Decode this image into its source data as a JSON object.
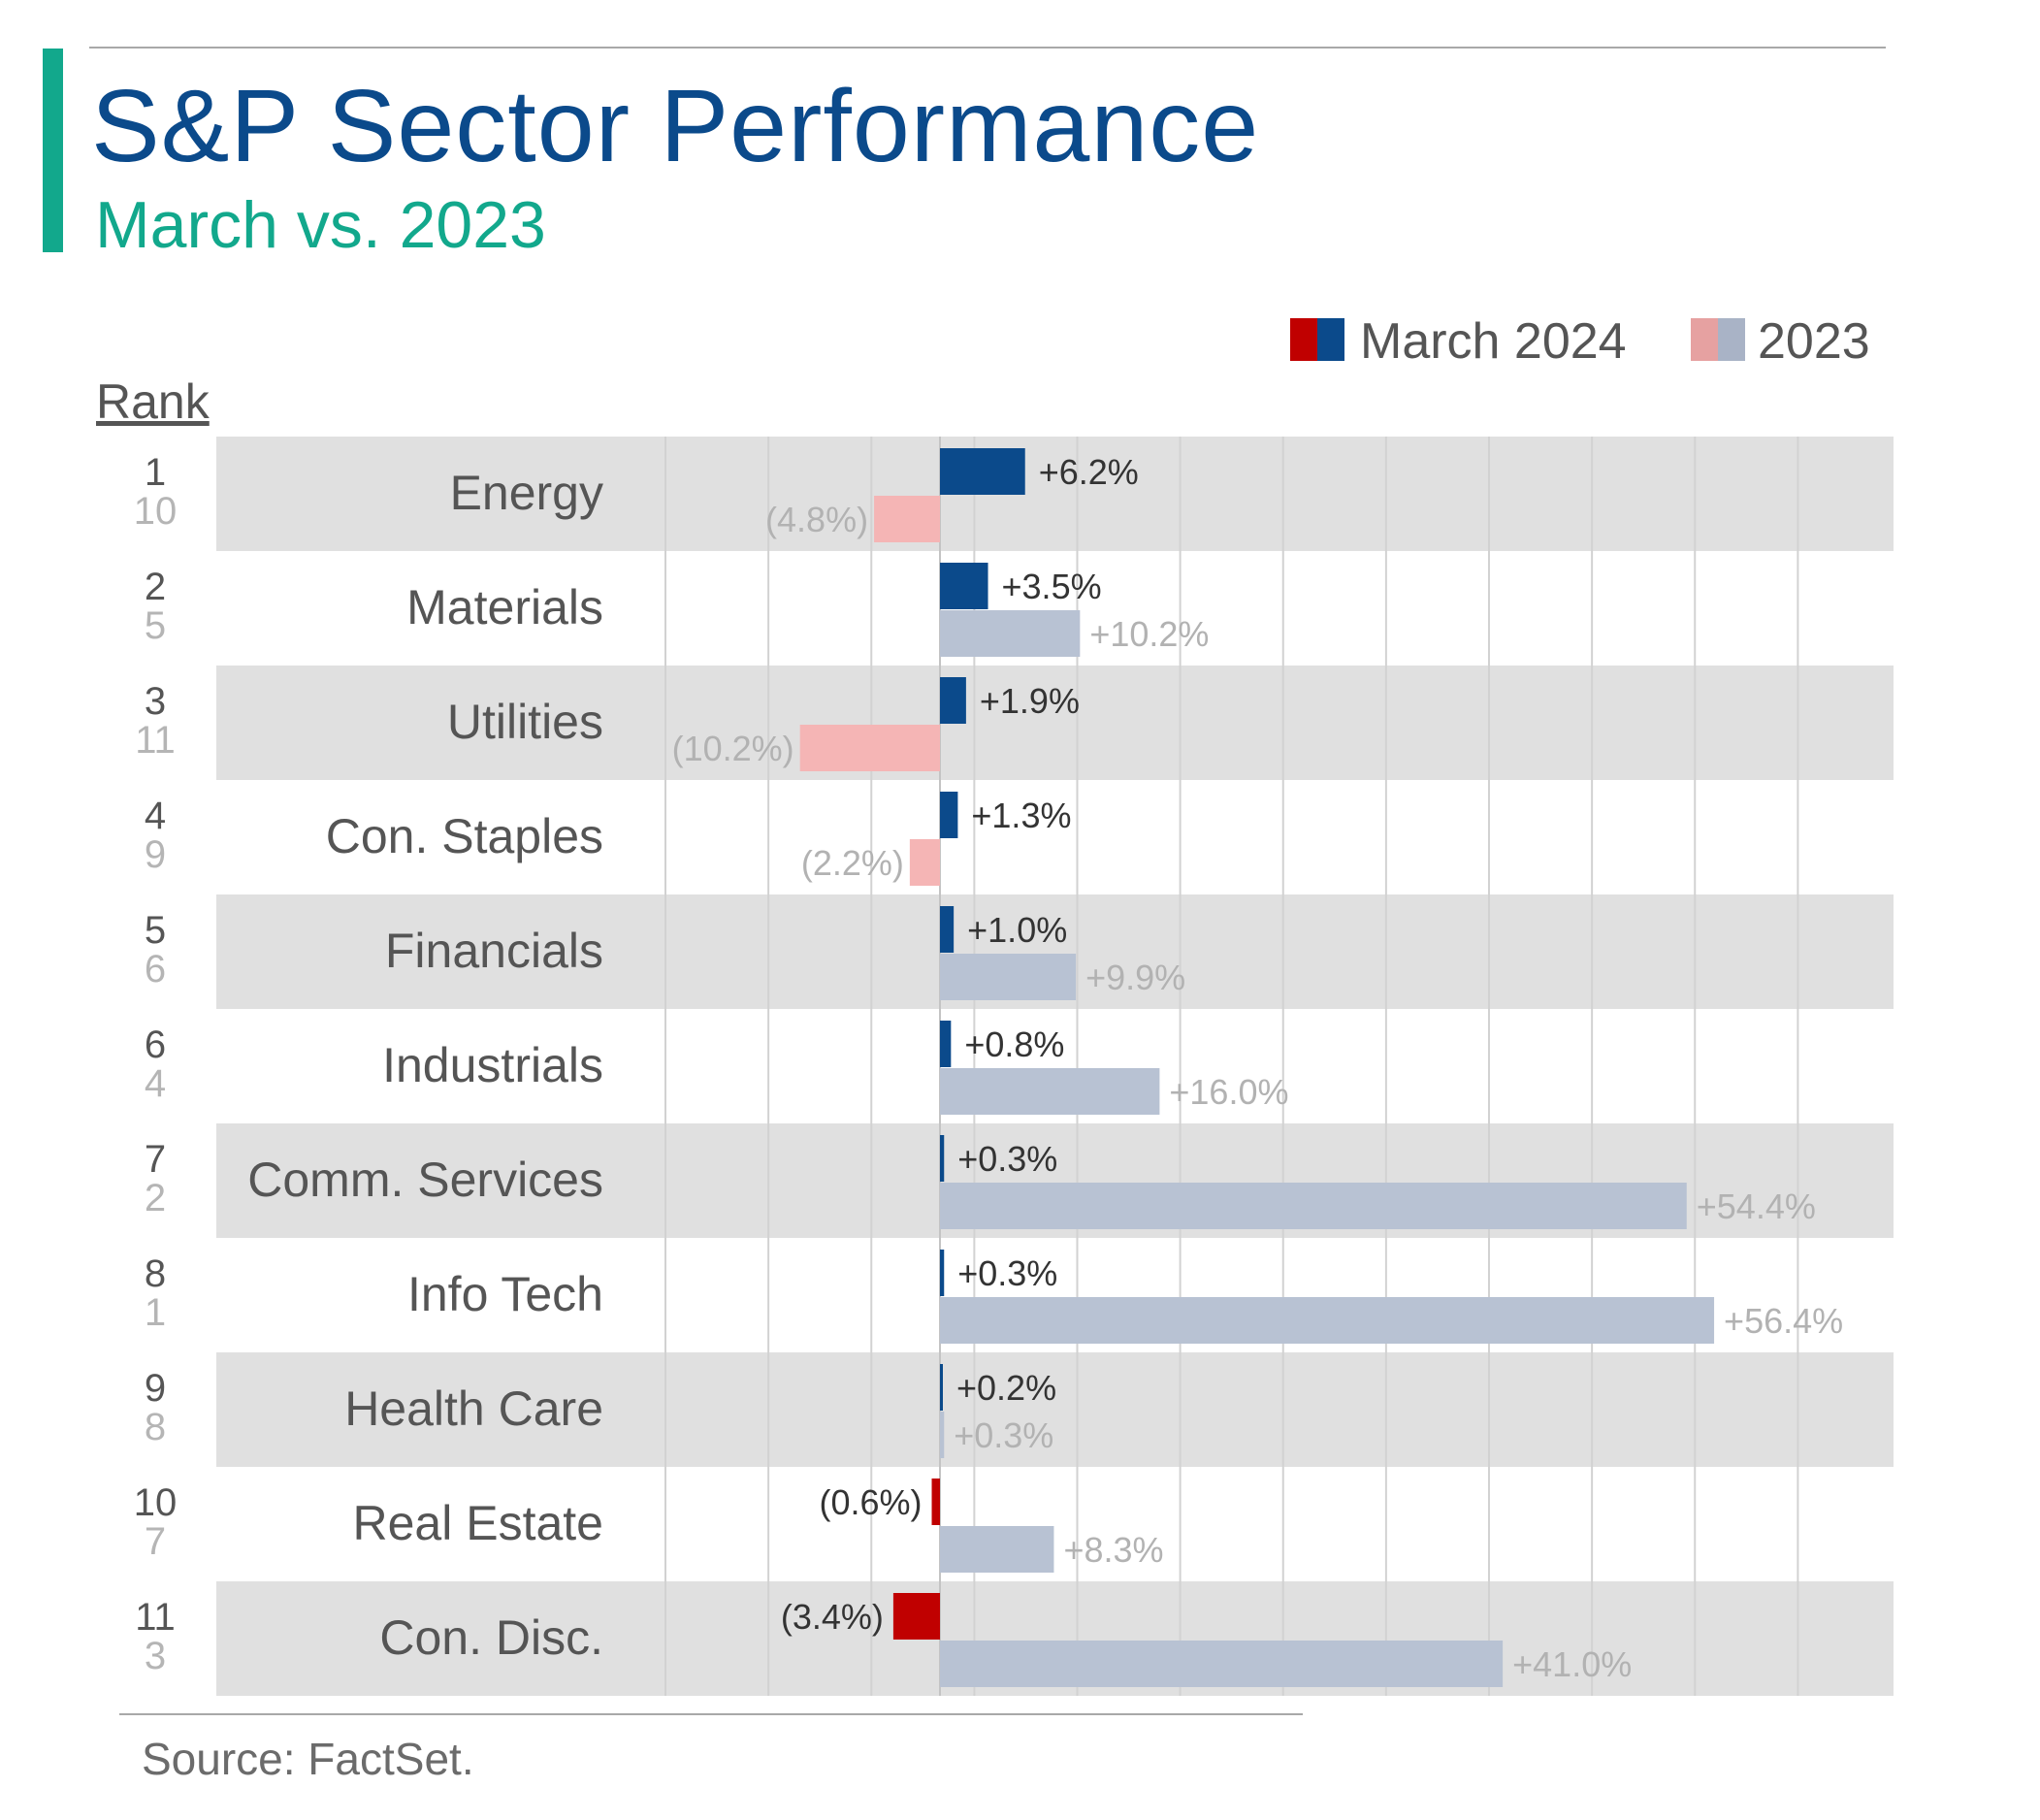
{
  "header": {
    "title": "S&P Sector Performance",
    "subtitle": "March vs. 2023"
  },
  "rank_label": "Rank",
  "source": "Source: FactSet.",
  "legend": {
    "march": "March 2024",
    "year": "2023"
  },
  "colors": {
    "march_positive": "#0b4a8b",
    "march_negative": "#c00000",
    "year_positive": "#b8c2d3",
    "year_negative": "#f5b5b5",
    "row_band": "#e0e0e0",
    "accent": "#12a88c",
    "title": "#0b4a8b"
  },
  "chart_data": {
    "type": "bar",
    "orientation": "horizontal",
    "categories": [
      "Energy",
      "Materials",
      "Utilities",
      "Con. Staples",
      "Financials",
      "Industrials",
      "Comm. Services",
      "Info Tech",
      "Health Care",
      "Real Estate",
      "Con. Disc."
    ],
    "rank_march": [
      "1",
      "2",
      "3",
      "4",
      "5",
      "6",
      "7",
      "8",
      "9",
      "10",
      "11"
    ],
    "rank_2023": [
      "10",
      "5",
      "11",
      "9",
      "6",
      "4",
      "2",
      "1",
      "8",
      "7",
      "3"
    ],
    "series": [
      {
        "name": "March 2024",
        "values": [
          6.2,
          3.5,
          1.9,
          1.3,
          1.0,
          0.8,
          0.3,
          0.3,
          0.2,
          -0.6,
          -3.4
        ],
        "labels": [
          "+6.2%",
          "+3.5%",
          "+1.9%",
          "+1.3%",
          "+1.0%",
          "+0.8%",
          "+0.3%",
          "+0.3%",
          "+0.2%",
          "(0.6%)",
          "(3.4%)"
        ]
      },
      {
        "name": "2023",
        "values": [
          -4.8,
          10.2,
          -10.2,
          -2.2,
          9.9,
          16.0,
          54.4,
          56.4,
          0.3,
          8.3,
          41.0
        ],
        "labels": [
          "(4.8%)",
          "+10.2%",
          "(10.2%)",
          "(2.2%)",
          "+9.9%",
          "+16.0%",
          "+54.4%",
          "+56.4%",
          "+0.3%",
          "+8.3%",
          "+41.0%"
        ]
      }
    ],
    "xlim": [
      -20,
      70
    ],
    "grid": true,
    "legend_position": "top-right"
  }
}
